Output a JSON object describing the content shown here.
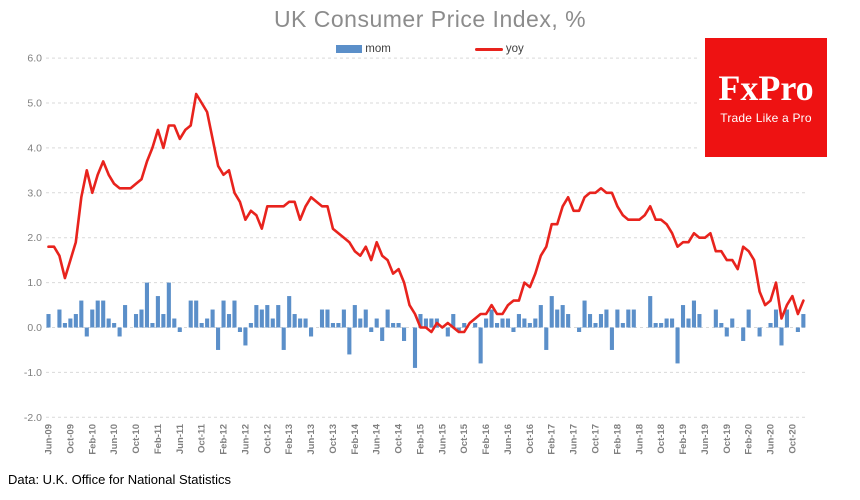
{
  "title": "UK Consumer Price Index, %",
  "source_note": "Data: U.K. Office for National Statistics",
  "logo": {
    "name": "FxPro",
    "tagline": "Trade Like a Pro",
    "bg_color": "#ee1212",
    "text_color": "#ffffff"
  },
  "legend": [
    {
      "label": "mom",
      "color": "#5b8fc9",
      "marker": "bar"
    },
    {
      "label": "yoy",
      "color": "#e8231d",
      "marker": "line"
    }
  ],
  "colors": {
    "bar": "#5b8fc9",
    "line": "#e8231d",
    "grid": "#d9d9d9",
    "axis_text": "#7f7f7f",
    "title_text": "#8c8c8c"
  },
  "chart_data": {
    "type": "bar+line combo, monthly time series Jun-2009 to Dec-2020",
    "n_points": 139,
    "tick_every": 4,
    "x_tick_labels": [
      "Jun-09",
      "Oct-09",
      "Feb-10",
      "Jun-10",
      "Oct-10",
      "Feb-11",
      "Jun-11",
      "Oct-11",
      "Feb-12",
      "Jun-12",
      "Oct-12",
      "Feb-13",
      "Jun-13",
      "Oct-13",
      "Feb-14",
      "Jun-14",
      "Oct-14",
      "Feb-15",
      "Jun-15",
      "Oct-15",
      "Feb-16",
      "Jun-16",
      "Oct-16",
      "Feb-17",
      "Jun-17",
      "Oct-17",
      "Feb-18",
      "Jun-18",
      "Oct-18",
      "Feb-19",
      "Jun-19",
      "Oct-19",
      "Feb-20",
      "Jun-20",
      "Oct-20"
    ],
    "ylim": [
      -2,
      6
    ],
    "yticks": [
      6,
      5,
      4,
      3,
      2,
      1,
      0,
      -1,
      -2
    ],
    "y_tick_labels": [
      "6.0",
      "5.0",
      "4.0",
      "3.0",
      "2.0",
      "1.0",
      "0.0",
      "-1.0",
      "-2.0"
    ],
    "grid": "horizontal dashed",
    "legend_position": "top-center",
    "series": [
      {
        "name": "mom",
        "type": "bar",
        "values": [
          0.3,
          0.0,
          0.4,
          0.1,
          0.2,
          0.3,
          0.6,
          -0.2,
          0.4,
          0.6,
          0.6,
          0.2,
          0.1,
          -0.2,
          0.5,
          0.0,
          0.3,
          0.4,
          1.0,
          0.1,
          0.7,
          0.3,
          1.0,
          0.2,
          -0.1,
          0.0,
          0.6,
          0.6,
          0.1,
          0.2,
          0.4,
          -0.5,
          0.6,
          0.3,
          0.6,
          -0.1,
          -0.4,
          0.1,
          0.5,
          0.4,
          0.5,
          0.2,
          0.5,
          -0.5,
          0.7,
          0.3,
          0.2,
          0.2,
          -0.2,
          0.0,
          0.4,
          0.4,
          0.1,
          0.1,
          0.4,
          -0.6,
          0.5,
          0.2,
          0.4,
          -0.1,
          0.2,
          -0.3,
          0.4,
          0.1,
          0.1,
          -0.3,
          0.0,
          -0.9,
          0.3,
          0.2,
          0.2,
          0.2,
          0.0,
          -0.2,
          0.3,
          -0.1,
          0.1,
          0.0,
          0.1,
          -0.8,
          0.2,
          0.4,
          0.1,
          0.2,
          0.2,
          -0.1,
          0.3,
          0.2,
          0.1,
          0.2,
          0.5,
          -0.5,
          0.7,
          0.4,
          0.5,
          0.3,
          0.0,
          -0.1,
          0.6,
          0.3,
          0.1,
          0.3,
          0.4,
          -0.5,
          0.4,
          0.1,
          0.4,
          0.4,
          0.0,
          0.0,
          0.7,
          0.1,
          0.1,
          0.2,
          0.2,
          -0.8,
          0.5,
          0.2,
          0.6,
          0.3,
          0.0,
          0.0,
          0.4,
          0.1,
          -0.2,
          0.2,
          0.0,
          -0.3,
          0.4,
          0.0,
          -0.2,
          0.0,
          0.1,
          0.4,
          -0.4,
          0.4,
          0.0,
          -0.1,
          0.3
        ]
      },
      {
        "name": "yoy",
        "type": "line",
        "values": [
          1.8,
          1.8,
          1.6,
          1.1,
          1.5,
          1.9,
          2.9,
          3.5,
          3.0,
          3.4,
          3.7,
          3.4,
          3.2,
          3.1,
          3.1,
          3.1,
          3.2,
          3.3,
          3.7,
          4.0,
          4.4,
          4.0,
          4.5,
          4.5,
          4.2,
          4.4,
          4.5,
          5.2,
          5.0,
          4.8,
          4.2,
          3.6,
          3.4,
          3.5,
          3.0,
          2.8,
          2.4,
          2.6,
          2.5,
          2.2,
          2.7,
          2.7,
          2.7,
          2.7,
          2.8,
          2.8,
          2.4,
          2.7,
          2.9,
          2.8,
          2.7,
          2.7,
          2.2,
          2.1,
          2.0,
          1.9,
          1.7,
          1.6,
          1.8,
          1.5,
          1.9,
          1.6,
          1.5,
          1.2,
          1.3,
          1.0,
          0.5,
          0.3,
          0.0,
          0.0,
          -0.1,
          0.1,
          0.0,
          0.1,
          0.0,
          -0.1,
          -0.1,
          0.1,
          0.2,
          0.3,
          0.3,
          0.5,
          0.3,
          0.3,
          0.5,
          0.6,
          0.6,
          1.0,
          0.9,
          1.2,
          1.6,
          1.8,
          2.3,
          2.3,
          2.7,
          2.9,
          2.6,
          2.6,
          2.9,
          3.0,
          3.0,
          3.1,
          3.0,
          3.0,
          2.7,
          2.5,
          2.4,
          2.4,
          2.4,
          2.5,
          2.7,
          2.4,
          2.4,
          2.3,
          2.1,
          1.8,
          1.9,
          1.9,
          2.1,
          2.0,
          2.0,
          2.1,
          1.7,
          1.7,
          1.5,
          1.5,
          1.3,
          1.8,
          1.7,
          1.5,
          0.8,
          0.5,
          0.6,
          1.0,
          0.2,
          0.5,
          0.7,
          0.3,
          0.6
        ]
      }
    ]
  }
}
